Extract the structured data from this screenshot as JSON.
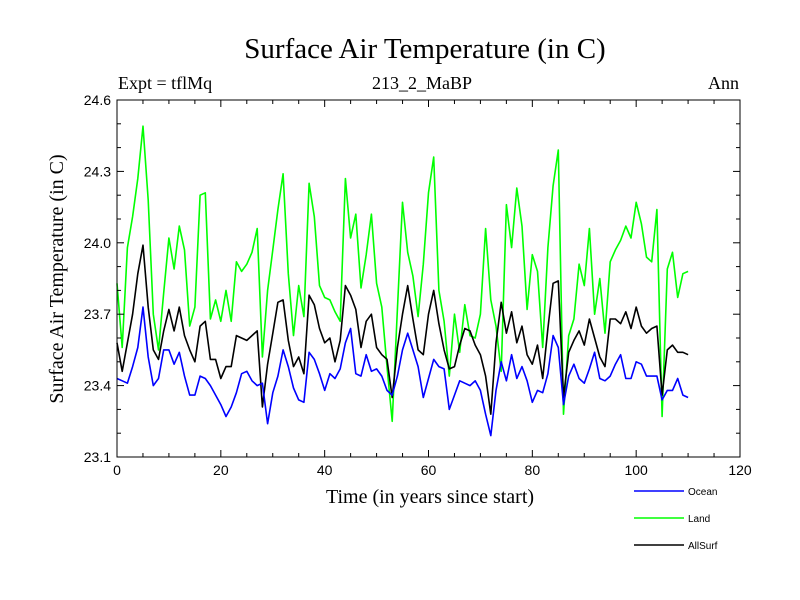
{
  "chart_data": {
    "type": "line",
    "title": "Surface Air Temperature (in C)",
    "subtitle_left": "Expt = tflMq",
    "subtitle_center": "213_2_MaBP",
    "subtitle_right": "Ann",
    "xlabel": "Time (in years since start)",
    "ylabel": "Surface Air Temperature (in C)",
    "xlim": [
      0,
      120
    ],
    "ylim": [
      23.1,
      24.6
    ],
    "xticks": [
      0,
      20,
      40,
      60,
      80,
      100,
      120
    ],
    "yticks": [
      23.1,
      23.4,
      23.7,
      24.0,
      24.3,
      24.6
    ],
    "xtick_labels": [
      "0",
      "20",
      "40",
      "60",
      "80",
      "100",
      "120"
    ],
    "ytick_labels": [
      "23.1",
      "23.4",
      "23.7",
      "24.0",
      "24.3",
      "24.6"
    ],
    "x_start": 0,
    "x_step": 1,
    "series": [
      {
        "name": "Ocean",
        "color": "#0000ff",
        "values": [
          23.43,
          23.42,
          23.41,
          23.48,
          23.56,
          23.73,
          23.52,
          23.4,
          23.43,
          23.55,
          23.55,
          23.49,
          23.54,
          23.44,
          23.36,
          23.36,
          23.44,
          23.43,
          23.4,
          23.36,
          23.32,
          23.27,
          23.31,
          23.37,
          23.45,
          23.46,
          23.42,
          23.4,
          23.41,
          23.24,
          23.37,
          23.44,
          23.55,
          23.48,
          23.39,
          23.34,
          23.33,
          23.54,
          23.51,
          23.45,
          23.38,
          23.45,
          23.43,
          23.47,
          23.58,
          23.64,
          23.45,
          23.44,
          23.53,
          23.46,
          23.47,
          23.44,
          23.38,
          23.36,
          23.44,
          23.55,
          23.62,
          23.55,
          23.48,
          23.35,
          23.43,
          23.51,
          23.48,
          23.47,
          23.3,
          23.36,
          23.42,
          23.41,
          23.4,
          23.42,
          23.38,
          23.28,
          23.19,
          23.38,
          23.5,
          23.42,
          23.53,
          23.43,
          23.48,
          23.42,
          23.33,
          23.38,
          23.37,
          23.45,
          23.61,
          23.56,
          23.32,
          23.44,
          23.49,
          23.43,
          23.41,
          23.47,
          23.54,
          23.43,
          23.42,
          23.44,
          23.49,
          23.53,
          23.43,
          23.43,
          23.5,
          23.49,
          23.44,
          23.44,
          23.44,
          23.34,
          23.38,
          23.38,
          23.43,
          23.36,
          23.35
        ]
      },
      {
        "name": "Land",
        "color": "#00ff00",
        "values": [
          23.83,
          23.56,
          23.98,
          24.11,
          24.27,
          24.49,
          24.18,
          23.7,
          23.55,
          23.79,
          24.02,
          23.89,
          24.07,
          23.97,
          23.65,
          23.73,
          24.2,
          24.21,
          23.68,
          23.76,
          23.67,
          23.8,
          23.67,
          23.92,
          23.88,
          23.91,
          23.96,
          24.06,
          23.52,
          23.8,
          23.97,
          24.14,
          24.29,
          23.87,
          23.61,
          23.82,
          23.69,
          24.25,
          24.11,
          23.82,
          23.77,
          23.76,
          23.71,
          23.67,
          24.27,
          24.02,
          24.12,
          23.81,
          23.95,
          24.12,
          23.83,
          23.73,
          23.48,
          23.25,
          23.72,
          24.17,
          23.96,
          23.86,
          23.69,
          23.91,
          24.21,
          24.36,
          23.8,
          23.67,
          23.44,
          23.7,
          23.54,
          23.74,
          23.61,
          23.6,
          23.7,
          24.06,
          23.76,
          23.65,
          23.46,
          24.16,
          23.98,
          24.23,
          24.07,
          23.72,
          23.95,
          23.88,
          23.56,
          23.98,
          24.24,
          24.39,
          23.28,
          23.61,
          23.68,
          23.91,
          23.82,
          24.06,
          23.7,
          23.85,
          23.62,
          23.92,
          23.97,
          24.01,
          24.07,
          24.02,
          24.17,
          24.08,
          23.94,
          23.92,
          24.14,
          23.27,
          23.89,
          23.96,
          23.77,
          23.87,
          23.88
        ]
      },
      {
        "name": "AllSurf",
        "color": "#000000",
        "values": [
          23.58,
          23.46,
          23.58,
          23.7,
          23.87,
          23.99,
          23.73,
          23.55,
          23.51,
          23.63,
          23.72,
          23.63,
          23.73,
          23.61,
          23.55,
          23.5,
          23.65,
          23.67,
          23.51,
          23.51,
          23.43,
          23.48,
          23.48,
          23.61,
          23.6,
          23.59,
          23.61,
          23.63,
          23.31,
          23.49,
          23.62,
          23.75,
          23.76,
          23.59,
          23.48,
          23.52,
          23.45,
          23.78,
          23.74,
          23.64,
          23.58,
          23.6,
          23.5,
          23.59,
          23.82,
          23.78,
          23.72,
          23.56,
          23.67,
          23.7,
          23.56,
          23.53,
          23.51,
          23.35,
          23.56,
          23.7,
          23.82,
          23.68,
          23.55,
          23.53,
          23.7,
          23.8,
          23.66,
          23.55,
          23.47,
          23.48,
          23.57,
          23.64,
          23.63,
          23.57,
          23.53,
          23.44,
          23.28,
          23.58,
          23.75,
          23.62,
          23.71,
          23.58,
          23.65,
          23.53,
          23.49,
          23.57,
          23.43,
          23.64,
          23.83,
          23.84,
          23.35,
          23.54,
          23.59,
          23.63,
          23.57,
          23.68,
          23.6,
          23.52,
          23.48,
          23.68,
          23.68,
          23.66,
          23.71,
          23.64,
          23.73,
          23.65,
          23.62,
          23.64,
          23.65,
          23.36,
          23.55,
          23.57,
          23.54,
          23.54,
          23.53
        ]
      }
    ]
  }
}
